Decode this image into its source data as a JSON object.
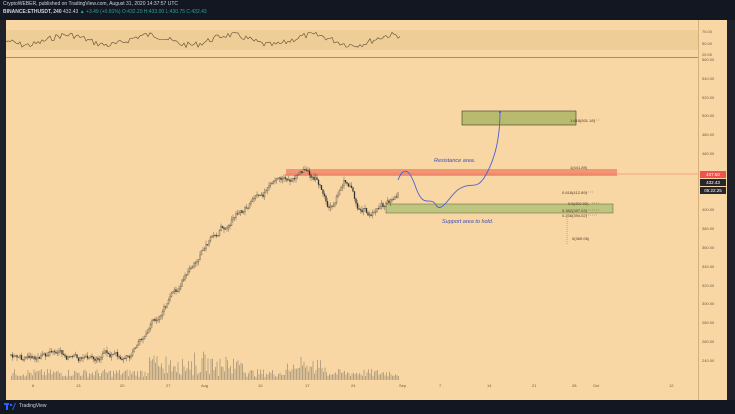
{
  "header": {
    "line1": "CryptoWEBER, published on TradingView.com, August 31, 2020 14:37:57 UTC",
    "symbol": "BINANCE:ETHUSDT, 240",
    "price": "432.43",
    "change": "▲ +3.49 (+0.81%)",
    "ohlc": "O:432.20 H:433.00 L:430.75 C:432.43"
  },
  "rsi": {
    "ticks": [
      "75.00",
      "50.00",
      "25.00"
    ]
  },
  "price_axis": {
    "ticks": [
      "560.00",
      "540.00",
      "520.00",
      "500.00",
      "480.00",
      "460.00",
      "440.00",
      "420.00",
      "400.00",
      "380.00",
      "360.00",
      "340.00",
      "320.00",
      "300.00",
      "280.00",
      "260.00",
      "240.00"
    ],
    "tags": [
      {
        "text": "437.50",
        "color": "#ef5350"
      },
      {
        "text": "432.43",
        "color": "#26262e"
      },
      {
        "text": "05:22:25",
        "color": "#26262e"
      }
    ]
  },
  "time_axis": [
    "6",
    "13",
    "20",
    "27",
    "Aug",
    "10",
    "17",
    "24",
    "Sep",
    "7",
    "14",
    "21",
    "28",
    "Oct",
    "12"
  ],
  "fib": {
    "f1618": "1.618(501.18)",
    "f1": "1(441.89)",
    "f0618": "0.618(412.89)",
    "f05": "0.5(402.92)",
    "f0382": "0.382(397.03)",
    "f0236": "0.236(394.02)",
    "f0": "0(369.06)"
  },
  "annotations": {
    "resistance": "Resistance area.",
    "support": "Support area to hold."
  },
  "footer": {
    "brand": "TradingView"
  },
  "colors": {
    "background": "#f9d7a4",
    "resistance_zone": "#f28a6a",
    "support_zone": "#b9c47a",
    "target_zone": "#b8bb6e",
    "path_line": "#4a5fd8",
    "candle": "#333333"
  }
}
